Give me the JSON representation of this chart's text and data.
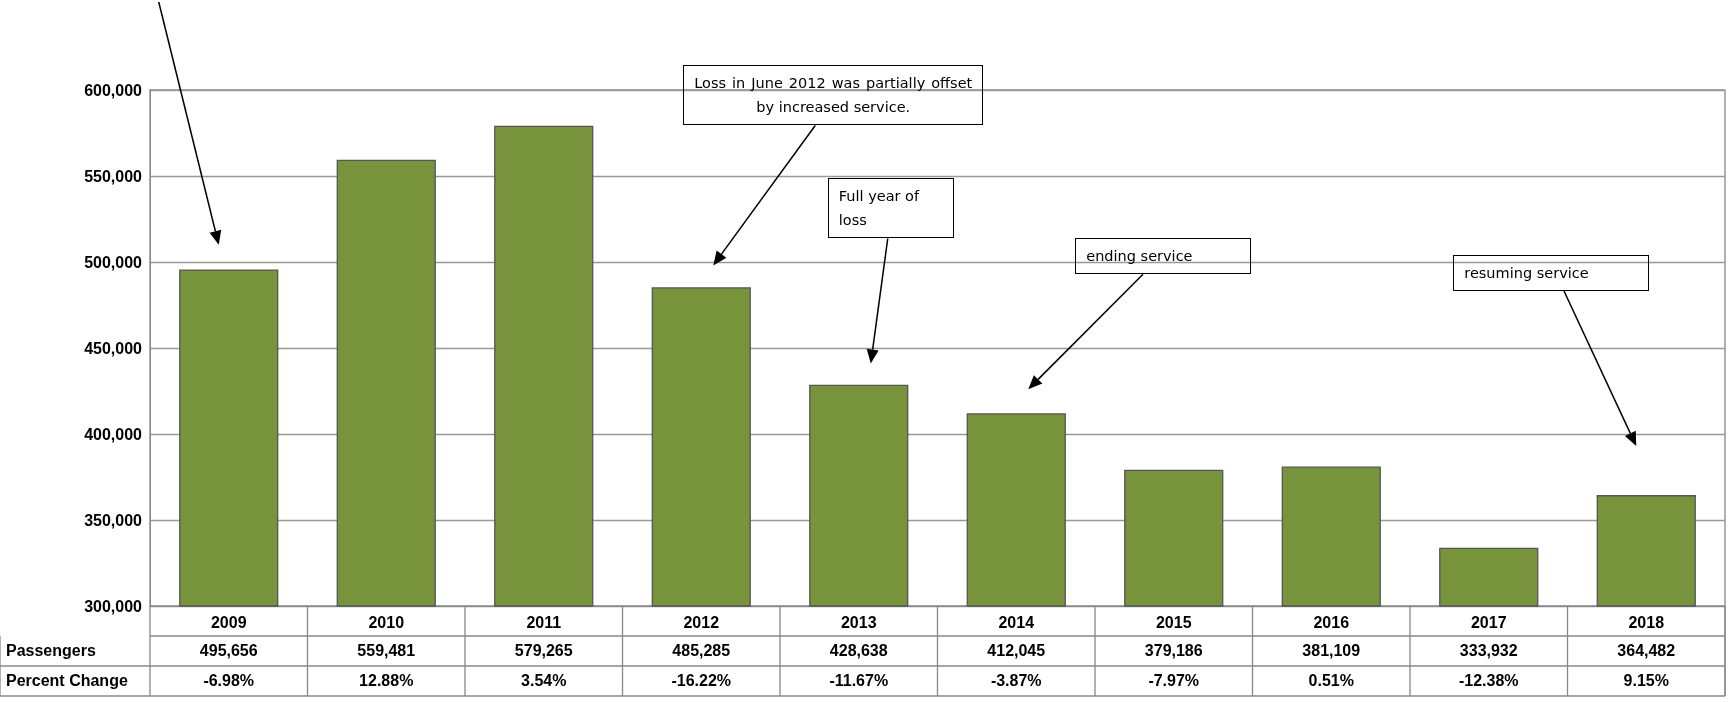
{
  "chart_data": {
    "type": "bar",
    "categories": [
      "2009",
      "2010",
      "2011",
      "2012",
      "2013",
      "2014",
      "2015",
      "2016",
      "2017",
      "2018"
    ],
    "values": [
      495656,
      559481,
      579265,
      485285,
      428638,
      412045,
      379186,
      381109,
      333932,
      364482
    ],
    "color": "#77933c",
    "ylim": [
      300000,
      600000
    ],
    "yticks": [
      {
        "value": 300000,
        "label": "300,000"
      },
      {
        "value": 350000,
        "label": "350,000"
      },
      {
        "value": 400000,
        "label": "400,000"
      },
      {
        "value": 450000,
        "label": "450,000"
      },
      {
        "value": 500000,
        "label": "500,000"
      },
      {
        "value": 550000,
        "label": "550,000"
      },
      {
        "value": 600000,
        "label": "600,000"
      }
    ],
    "value_labels": [
      "495,656",
      "559,481",
      "579,265",
      "485,285",
      "428,638",
      "412,045",
      "379,186",
      "381,109",
      "333,932",
      "364,482"
    ],
    "grid": "y",
    "annotations": [
      "Loss in June 2012 was partially offset by increased service.",
      "Full year of loss",
      "ending service",
      "resuming service",
      "Passengers",
      "Percent Change",
      "-6.98%",
      "12.88%",
      "3.54%",
      "-16.22%",
      "-11.67%",
      "-3.87%",
      "-7.97%",
      "0.51%",
      "-12.38%",
      "9.15%"
    ]
  }
}
